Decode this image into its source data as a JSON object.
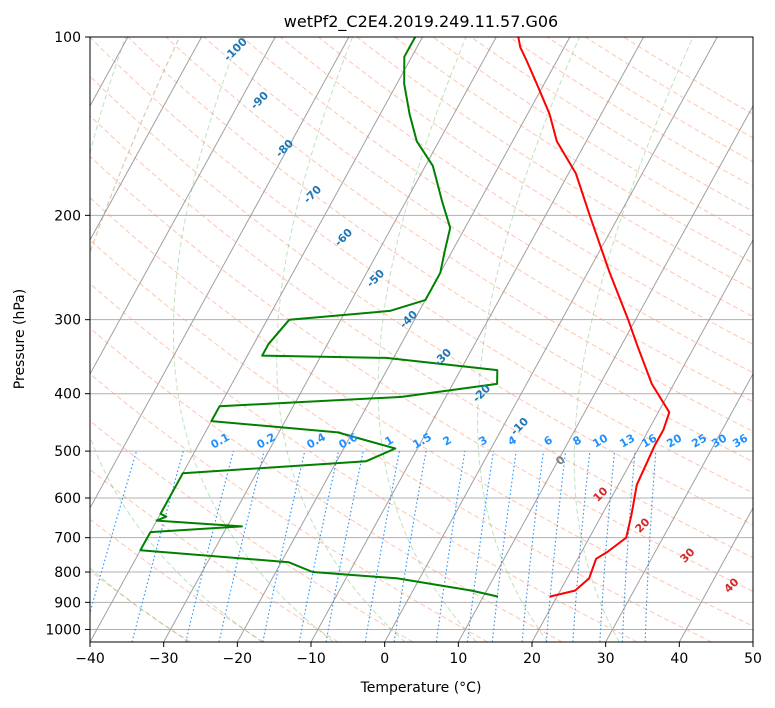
{
  "chart_data": {
    "type": "line",
    "title": "wetPf2_C2E4.2019.249.11.57.G06",
    "xlabel": "Temperature (°C)",
    "ylabel": "Pressure (hPa)",
    "xlim": [
      -40,
      50
    ],
    "ylim": [
      1050,
      100
    ],
    "y_scale": "log",
    "skew": "skew-T",
    "grid": true,
    "x_ticks": [
      -40,
      -30,
      -20,
      -10,
      0,
      10,
      20,
      30,
      40,
      50
    ],
    "y_ticks": [
      1000,
      900,
      800,
      700,
      600,
      500,
      400,
      300,
      200,
      100
    ],
    "series": [
      {
        "color": "#ff0000",
        "points": [
          {
            "t": 19.0,
            "p": 880
          },
          {
            "t": 22.0,
            "p": 860
          },
          {
            "t": 23.0,
            "p": 820
          },
          {
            "t": 22.5,
            "p": 760
          },
          {
            "t": 23.5,
            "p": 740
          },
          {
            "t": 25.0,
            "p": 700
          },
          {
            "t": 24.0,
            "p": 640
          },
          {
            "t": 22.5,
            "p": 570
          },
          {
            "t": 22.0,
            "p": 490
          },
          {
            "t": 22.0,
            "p": 460
          },
          {
            "t": 21.5,
            "p": 430
          },
          {
            "t": 17.0,
            "p": 385
          },
          {
            "t": 12.0,
            "p": 330
          },
          {
            "t": 9.0,
            "p": 300
          },
          {
            "t": 3.0,
            "p": 250
          },
          {
            "t": -4.0,
            "p": 200
          },
          {
            "t": -9.0,
            "p": 170
          },
          {
            "t": -14.0,
            "p": 150
          },
          {
            "t": -17.0,
            "p": 135
          },
          {
            "t": -21.0,
            "p": 120
          },
          {
            "t": -24.0,
            "p": 110
          },
          {
            "t": -26.0,
            "p": 104
          },
          {
            "t": -27.0,
            "p": 100
          }
        ]
      },
      {
        "color": "#008000",
        "points": [
          {
            "t": 12.0,
            "p": 880
          },
          {
            "t": 8.0,
            "p": 860
          },
          {
            "t": -3.0,
            "p": 820
          },
          {
            "t": -15.0,
            "p": 800
          },
          {
            "t": -19.0,
            "p": 770
          },
          {
            "t": -40.0,
            "p": 735
          },
          {
            "t": -40.0,
            "p": 685
          },
          {
            "t": -28.0,
            "p": 670
          },
          {
            "t": -40.0,
            "p": 655
          },
          {
            "t": -39.0,
            "p": 645
          },
          {
            "t": -40.0,
            "p": 638
          },
          {
            "t": -40.0,
            "p": 545
          },
          {
            "t": -16.0,
            "p": 520
          },
          {
            "t": -13.0,
            "p": 495
          },
          {
            "t": -22.0,
            "p": 465
          },
          {
            "t": -40.0,
            "p": 445
          },
          {
            "t": -40.0,
            "p": 420
          },
          {
            "t": -16.0,
            "p": 405
          },
          {
            "t": -4.0,
            "p": 385
          },
          {
            "t": -5.0,
            "p": 365
          },
          {
            "t": -21.0,
            "p": 348
          },
          {
            "t": -38.0,
            "p": 345
          },
          {
            "t": -38.0,
            "p": 330
          },
          {
            "t": -37.0,
            "p": 300
          },
          {
            "t": -24.0,
            "p": 290
          },
          {
            "t": -20.0,
            "p": 278
          },
          {
            "t": -20.0,
            "p": 265
          },
          {
            "t": -20.0,
            "p": 250
          },
          {
            "t": -21.0,
            "p": 230
          },
          {
            "t": -22.0,
            "p": 210
          },
          {
            "t": -25.0,
            "p": 190
          },
          {
            "t": -29.0,
            "p": 165
          },
          {
            "t": -33.0,
            "p": 150
          },
          {
            "t": -36.0,
            "p": 135
          },
          {
            "t": -39.0,
            "p": 120
          },
          {
            "t": -41.0,
            "p": 108
          },
          {
            "t": -41.0,
            "p": 100
          }
        ]
      }
    ],
    "dry_adiabat_labels": [
      "-100",
      "-90",
      "-80",
      "-70",
      "-60",
      "-50",
      "-40",
      "-30",
      "-20",
      "-10",
      "0",
      "10",
      "20",
      "30",
      "40"
    ],
    "dry_adiabat_colors": {
      "cold": "#1f77b4",
      "zero": "#7f7f7f",
      "warm": "#d62728"
    },
    "mixing_ratio_labels": [
      "0.1",
      "0.2",
      "0.4",
      "0.6",
      "1",
      "1.5",
      "2",
      "3",
      "4",
      "6",
      "8",
      "10",
      "13",
      "16",
      "20",
      "25",
      "30",
      "36"
    ],
    "mixing_ratio_color": "#1e90ff"
  }
}
